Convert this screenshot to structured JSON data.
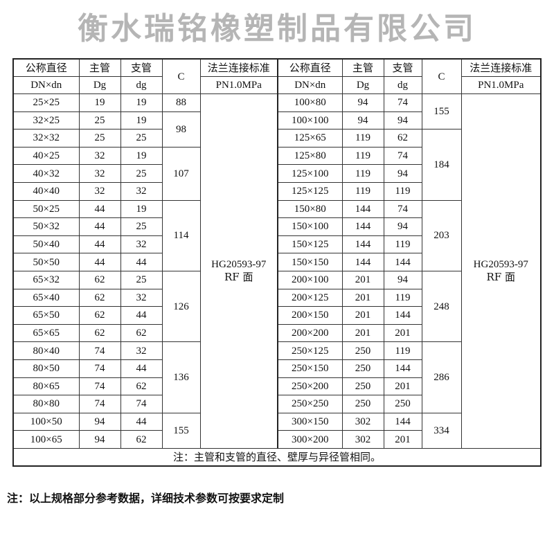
{
  "header": {
    "dn_zh": "公称直径",
    "dn_en": "DN×dn",
    "main_zh": "主管",
    "main_en": "Dg",
    "branch_zh": "支管",
    "branch_en": "dg",
    "c": "C",
    "flange_zh": "法兰连接标准",
    "flange_en": "PN1.0MPa"
  },
  "flange_standard": {
    "line1": "HG20593-97",
    "line2": "RF 面"
  },
  "left_rows": [
    [
      "25×25",
      "19",
      "19"
    ],
    [
      "32×25",
      "25",
      "19"
    ],
    [
      "32×32",
      "25",
      "25"
    ],
    [
      "40×25",
      "32",
      "19"
    ],
    [
      "40×32",
      "32",
      "25"
    ],
    [
      "40×40",
      "32",
      "32"
    ],
    [
      "50×25",
      "44",
      "19"
    ],
    [
      "50×32",
      "44",
      "25"
    ],
    [
      "50×40",
      "44",
      "32"
    ],
    [
      "50×50",
      "44",
      "44"
    ],
    [
      "65×32",
      "62",
      "25"
    ],
    [
      "65×40",
      "62",
      "32"
    ],
    [
      "65×50",
      "62",
      "44"
    ],
    [
      "65×65",
      "62",
      "62"
    ],
    [
      "80×40",
      "74",
      "32"
    ],
    [
      "80×50",
      "74",
      "44"
    ],
    [
      "80×65",
      "74",
      "62"
    ],
    [
      "80×80",
      "74",
      "74"
    ],
    [
      "100×50",
      "94",
      "44"
    ],
    [
      "100×65",
      "94",
      "62"
    ]
  ],
  "left_c": [
    {
      "value": "88",
      "rows": 1
    },
    {
      "value": "98",
      "rows": 2
    },
    {
      "value": "107",
      "rows": 3
    },
    {
      "value": "114",
      "rows": 4
    },
    {
      "value": "126",
      "rows": 4
    },
    {
      "value": "136",
      "rows": 4
    },
    {
      "value": "155",
      "rows": 2
    }
  ],
  "right_rows": [
    [
      "100×80",
      "94",
      "74"
    ],
    [
      "100×100",
      "94",
      "94"
    ],
    [
      "125×65",
      "119",
      "62"
    ],
    [
      "125×80",
      "119",
      "74"
    ],
    [
      "125×100",
      "119",
      "94"
    ],
    [
      "125×125",
      "119",
      "119"
    ],
    [
      "150×80",
      "144",
      "74"
    ],
    [
      "150×100",
      "144",
      "94"
    ],
    [
      "150×125",
      "144",
      "119"
    ],
    [
      "150×150",
      "144",
      "144"
    ],
    [
      "200×100",
      "201",
      "94"
    ],
    [
      "200×125",
      "201",
      "119"
    ],
    [
      "200×150",
      "201",
      "144"
    ],
    [
      "200×200",
      "201",
      "201"
    ],
    [
      "250×125",
      "250",
      "119"
    ],
    [
      "250×150",
      "250",
      "144"
    ],
    [
      "250×200",
      "250",
      "201"
    ],
    [
      "250×250",
      "250",
      "250"
    ],
    [
      "300×150",
      "302",
      "144"
    ],
    [
      "300×200",
      "302",
      "201"
    ]
  ],
  "right_c": [
    {
      "value": "155",
      "rows": 2
    },
    {
      "value": "184",
      "rows": 4
    },
    {
      "value": "203",
      "rows": 4
    },
    {
      "value": "248",
      "rows": 4
    },
    {
      "value": "286",
      "rows": 4
    },
    {
      "value": "334",
      "rows": 2
    }
  ],
  "table_footnote": "注：主管和支管的直径、壁厚与异径管相同。",
  "watermark": "衡水瑞铭橡塑制品有限公司",
  "note": "注：以上规格部分参考数据，详细技术参数可按要求定制"
}
